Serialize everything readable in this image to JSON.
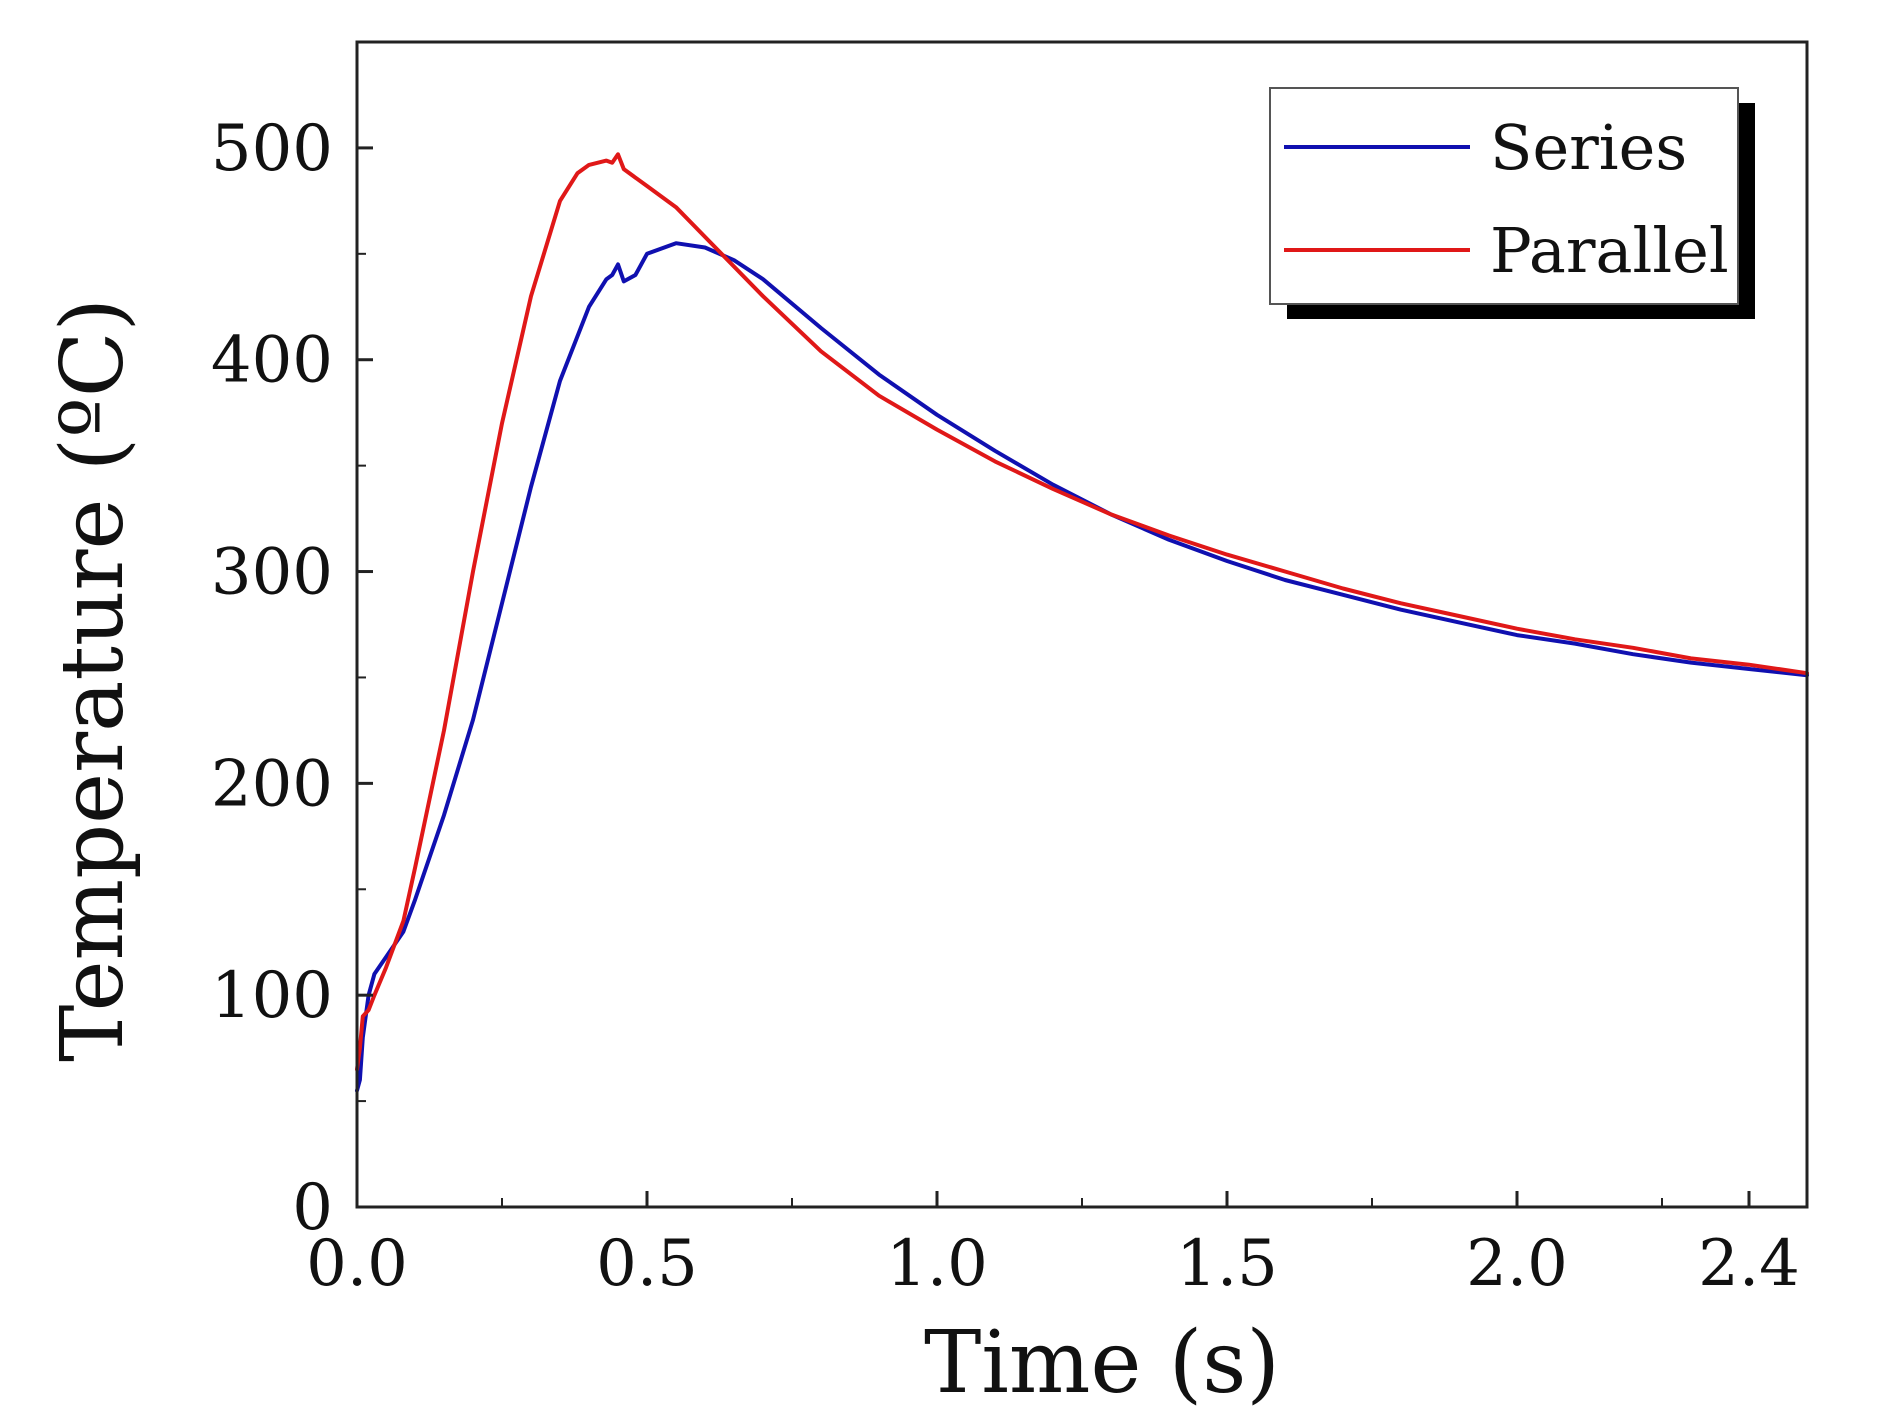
{
  "chart_data": {
    "type": "line",
    "title": "",
    "xlabel": "Time (s)",
    "ylabel": "Temperature (ºC)",
    "xlim": [
      0,
      2.5
    ],
    "ylim": [
      0,
      550
    ],
    "x_ticks": [
      0.0,
      0.5,
      1.0,
      1.5,
      2.0,
      2.4
    ],
    "x_tick_labels": [
      "0.0",
      "0.5",
      "1.0",
      "1.5",
      "2.0",
      "2.4"
    ],
    "y_ticks": [
      0,
      100,
      200,
      300,
      400,
      500
    ],
    "y_tick_labels": [
      "0",
      "100",
      "200",
      "300",
      "400",
      "500"
    ],
    "grid": false,
    "legend": "top-right",
    "series": [
      {
        "name": "Series",
        "color": "#1010b0",
        "x": [
          0.0,
          0.005,
          0.01,
          0.02,
          0.03,
          0.05,
          0.08,
          0.1,
          0.15,
          0.2,
          0.25,
          0.3,
          0.35,
          0.4,
          0.43,
          0.44,
          0.45,
          0.46,
          0.48,
          0.5,
          0.55,
          0.6,
          0.65,
          0.7,
          0.8,
          0.9,
          1.0,
          1.1,
          1.2,
          1.3,
          1.4,
          1.5,
          1.6,
          1.7,
          1.8,
          1.9,
          2.0,
          2.1,
          2.2,
          2.3,
          2.4,
          2.5
        ],
        "y": [
          55,
          60,
          80,
          100,
          110,
          118,
          130,
          145,
          185,
          230,
          285,
          340,
          390,
          425,
          438,
          440,
          445,
          437,
          440,
          450,
          455,
          453,
          447,
          438,
          415,
          393,
          374,
          357,
          341,
          327,
          315,
          305,
          296,
          289,
          282,
          276,
          270,
          266,
          261,
          257,
          254,
          251
        ]
      },
      {
        "name": "Parallel",
        "color": "#e01818",
        "x": [
          0.0,
          0.005,
          0.01,
          0.02,
          0.03,
          0.05,
          0.08,
          0.1,
          0.15,
          0.2,
          0.25,
          0.3,
          0.35,
          0.38,
          0.4,
          0.43,
          0.44,
          0.45,
          0.46,
          0.48,
          0.5,
          0.55,
          0.6,
          0.7,
          0.8,
          0.9,
          1.0,
          1.1,
          1.2,
          1.3,
          1.4,
          1.5,
          1.6,
          1.7,
          1.8,
          1.9,
          2.0,
          2.1,
          2.2,
          2.3,
          2.4,
          2.5
        ],
        "y": [
          65,
          75,
          90,
          93,
          100,
          113,
          135,
          160,
          225,
          300,
          370,
          430,
          475,
          488,
          492,
          494,
          493,
          497,
          490,
          486,
          482,
          472,
          458,
          430,
          404,
          383,
          367,
          352,
          339,
          327,
          317,
          308,
          300,
          292,
          285,
          279,
          273,
          268,
          264,
          259,
          256,
          252
        ]
      }
    ]
  }
}
